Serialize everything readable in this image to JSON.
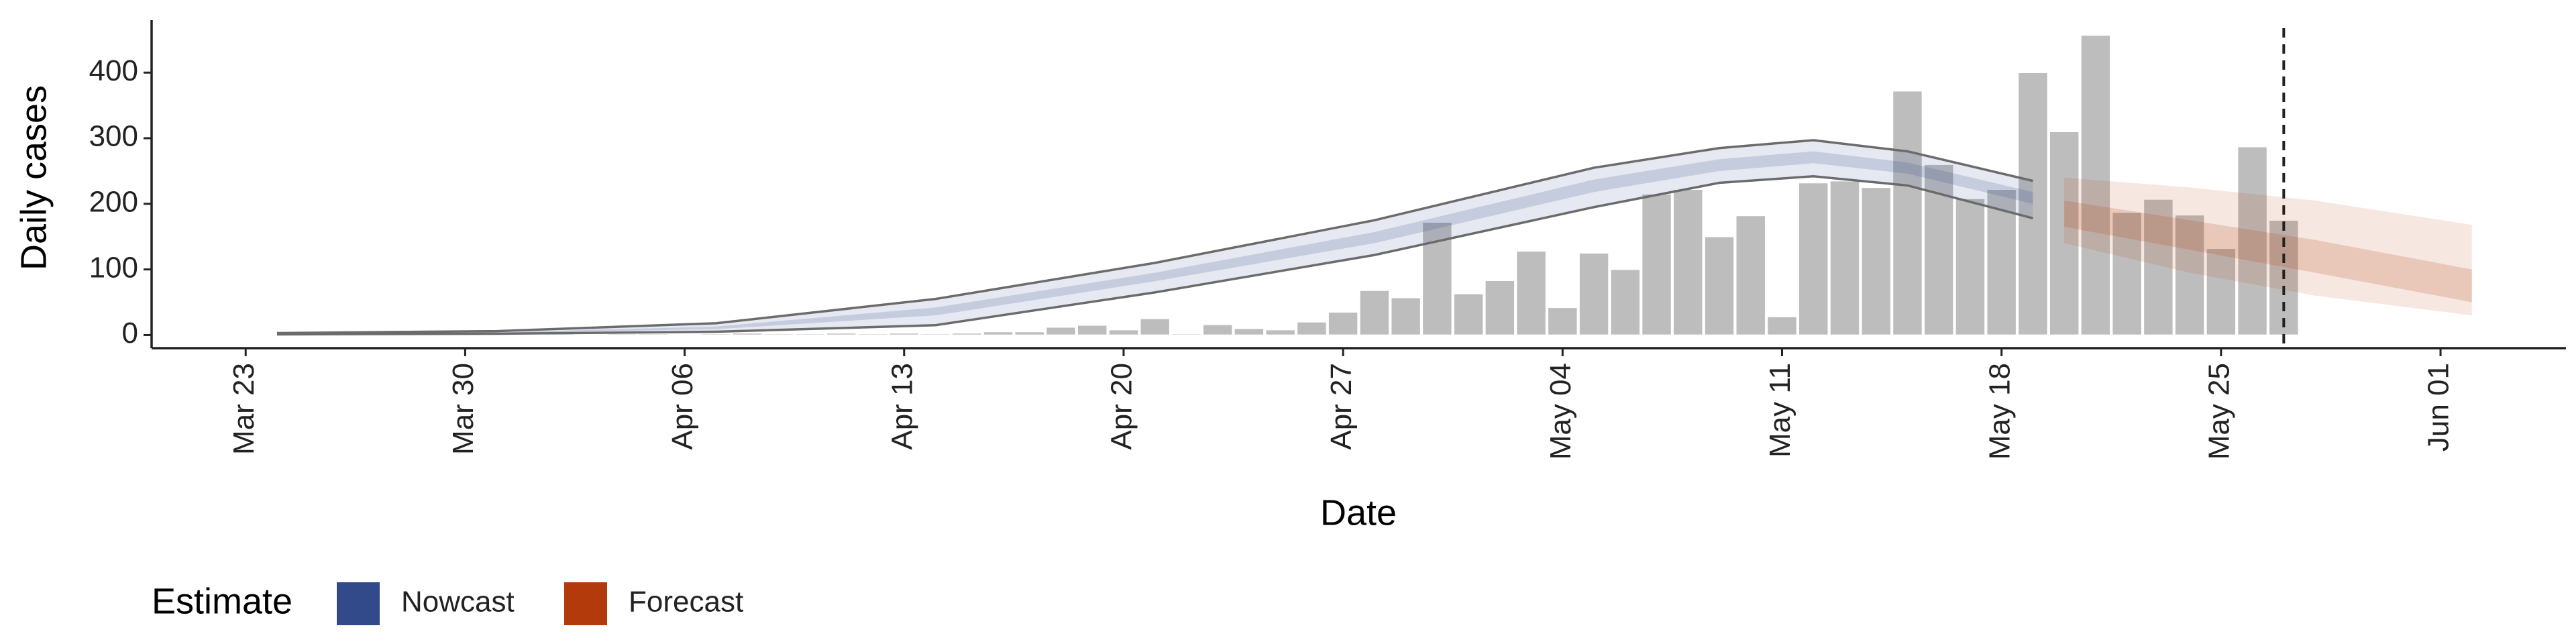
{
  "chart_data": {
    "type": "bar",
    "y_label": "Daily cases",
    "x_label": "Date",
    "x": [
      "Mar 23",
      "Mar 24",
      "Mar 25",
      "Mar 26",
      "Mar 27",
      "Mar 28",
      "Mar 29",
      "Mar 30",
      "Mar 31",
      "Apr 01",
      "Apr 02",
      "Apr 03",
      "Apr 04",
      "Apr 05",
      "Apr 06",
      "Apr 07",
      "Apr 08",
      "Apr 09",
      "Apr 10",
      "Apr 11",
      "Apr 12",
      "Apr 13",
      "Apr 14",
      "Apr 15",
      "Apr 16",
      "Apr 17",
      "Apr 18",
      "Apr 19",
      "Apr 20",
      "Apr 21",
      "Apr 22",
      "Apr 23",
      "Apr 24",
      "Apr 25",
      "Apr 26",
      "Apr 27",
      "Apr 28",
      "Apr 29",
      "Apr 30",
      "May 01",
      "May 02",
      "May 03",
      "May 04",
      "May 05",
      "May 06",
      "May 07",
      "May 08",
      "May 09",
      "May 10",
      "May 11",
      "May 12",
      "May 13",
      "May 14",
      "May 15",
      "May 16",
      "May 17",
      "May 18",
      "May 19",
      "May 20",
      "May 21",
      "May 22",
      "May 23",
      "May 24",
      "May 25",
      "May 26",
      "May 27"
    ],
    "values": [
      1,
      0,
      1,
      1,
      0,
      1,
      1,
      2,
      1,
      1,
      2,
      1,
      2,
      2,
      1,
      2,
      3,
      2,
      2,
      3,
      2,
      3,
      2,
      3,
      5,
      5,
      12,
      15,
      8,
      25,
      2,
      16,
      10,
      8,
      20,
      35,
      68,
      57,
      172,
      63,
      83,
      128,
      42,
      125,
      100,
      215,
      222,
      150,
      182,
      28,
      232,
      235,
      225,
      372,
      260,
      208,
      222,
      400,
      310,
      457,
      187,
      207,
      183,
      132,
      287,
      175
    ],
    "color": "#bdbdbd",
    "bands": [
      {
        "name": "Nowcast",
        "color": "#32498a",
        "x": [
          "Mar 24",
          "Mar 31",
          "Apr 07",
          "Apr 14",
          "Apr 21",
          "Apr 28",
          "May 05",
          "May 09",
          "May 12",
          "May 15",
          "May 19"
        ],
        "upper90": [
          3,
          6,
          18,
          55,
          110,
          175,
          255,
          285,
          297,
          280,
          235
        ],
        "lower90": [
          1,
          2,
          5,
          15,
          65,
          122,
          195,
          232,
          242,
          228,
          178
        ],
        "upper50": [
          2,
          4,
          13,
          42,
          95,
          157,
          237,
          268,
          280,
          263,
          218
        ],
        "lower50": [
          1,
          3,
          9,
          30,
          82,
          140,
          218,
          250,
          262,
          246,
          200
        ]
      },
      {
        "name": "Forecast",
        "color": "#b33b0b",
        "x": [
          "May 20",
          "May 24",
          "May 28",
          "Jun 02"
        ],
        "upper90": [
          240,
          225,
          205,
          168
        ],
        "lower90": [
          140,
          95,
          60,
          30
        ],
        "upper50": [
          205,
          175,
          145,
          100
        ],
        "lower50": [
          165,
          130,
          95,
          50
        ]
      }
    ],
    "date_line": "May 27",
    "legend_title": "Estimate",
    "xlim": [
      "Mar 20",
      "Jun 05"
    ],
    "xticks": [
      "Mar 23",
      "Mar 30",
      "Apr 06",
      "Apr 13",
      "Apr 20",
      "Apr 27",
      "May 04",
      "May 11",
      "May 18",
      "May 25",
      "Jun 01"
    ],
    "ylim": [
      -20,
      480
    ],
    "yticks": [
      0,
      100,
      200,
      300,
      400
    ]
  }
}
